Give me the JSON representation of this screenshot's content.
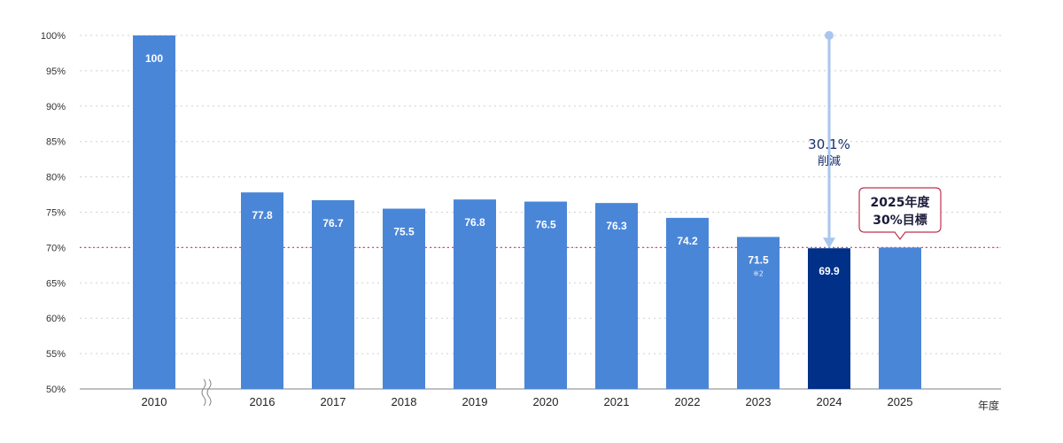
{
  "chart_data": {
    "type": "bar",
    "categories": [
      "2010",
      "2016",
      "2017",
      "2018",
      "2019",
      "2020",
      "2021",
      "2022",
      "2023",
      "2024",
      "2025"
    ],
    "values": [
      100,
      77.8,
      76.7,
      75.5,
      76.8,
      76.5,
      76.3,
      74.2,
      71.5,
      69.9,
      70
    ],
    "value_labels": [
      "100",
      "77.8",
      "76.7",
      "75.5",
      "76.8",
      "76.5",
      "76.3",
      "74.2",
      "71.5",
      "69.9",
      ""
    ],
    "notes": {
      "2023": "※2"
    },
    "highlight_category": "2024",
    "ylim": [
      50,
      100
    ],
    "yticks": [
      "50%",
      "55%",
      "60%",
      "65%",
      "70%",
      "75%",
      "80%",
      "85%",
      "90%",
      "95%",
      "100%"
    ],
    "ytick_values": [
      50,
      55,
      60,
      65,
      70,
      75,
      80,
      85,
      90,
      95,
      100
    ],
    "xlabel": "年度",
    "ylabel": "",
    "grid": true,
    "axis_break_after": "2010",
    "target_line": 70,
    "annotations": {
      "reduction_value": "30.1%",
      "reduction_label": "削減",
      "target_line1": "2025年度",
      "target_line2": "30%目標"
    },
    "colors": {
      "bar": "#4a86d8",
      "bar_highlight": "#003087",
      "grid": "#cfcfcf",
      "target_line": "#e0457b",
      "arrow": "#a9c6ef",
      "target_box_border": "#c0314f"
    }
  }
}
